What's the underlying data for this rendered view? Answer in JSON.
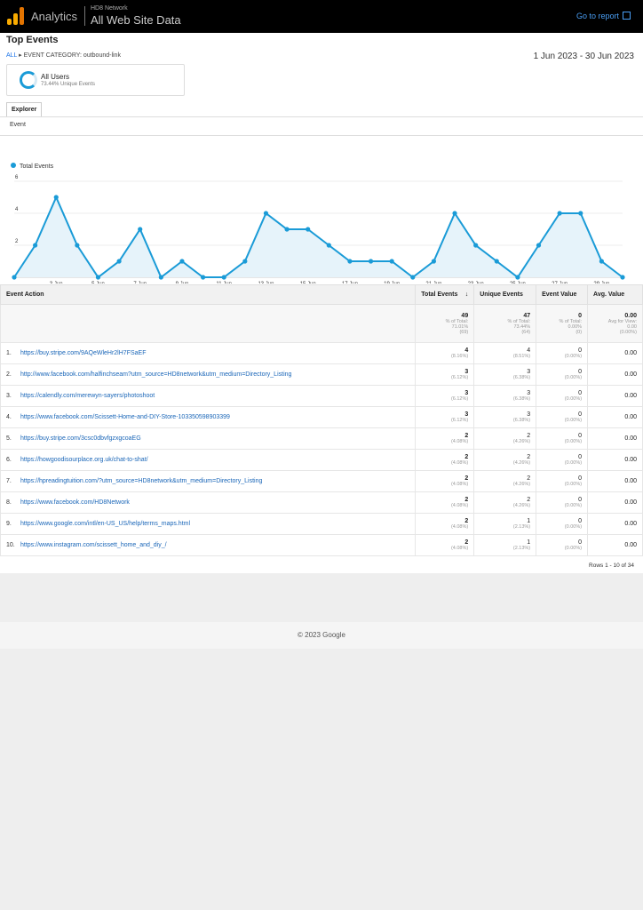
{
  "header": {
    "app_name": "Analytics",
    "account": "HD8 Network",
    "property": "All Web Site Data",
    "go_to_report": "Go to report"
  },
  "report": {
    "title": "Top Events",
    "breadcrumb_all": "ALL",
    "breadcrumb_rest": "EVENT CATEGORY: outbound-link",
    "date_range": "1 Jun 2023 - 30 Jun 2023"
  },
  "segment": {
    "name": "All Users",
    "subtitle": "73.44% Unique Events"
  },
  "tabs": {
    "explorer": "Explorer"
  },
  "primary_dimension": "Event",
  "chart_data": {
    "type": "area",
    "legend": "Total Events",
    "y_ticks": [
      "2",
      "4",
      "6"
    ],
    "ylim": [
      0,
      6
    ],
    "x_tick_labels": [
      "...",
      "3 Jun",
      "5 Jun",
      "7 Jun",
      "9 Jun",
      "11 Jun",
      "13 Jun",
      "15 Jun",
      "17 Jun",
      "19 Jun",
      "21 Jun",
      "23 Jun",
      "25 Jun",
      "27 Jun",
      "29 Jun"
    ],
    "values": [
      0,
      2,
      5,
      2,
      0,
      1,
      3,
      0,
      1,
      0,
      0,
      1,
      4,
      3,
      3,
      2,
      1,
      1,
      1,
      0,
      1,
      4,
      2,
      1,
      0,
      2,
      4,
      4,
      1,
      0
    ],
    "color": "#1a9bd7"
  },
  "table": {
    "headers": {
      "action": "Event Action",
      "total": "Total Events",
      "unique": "Unique Events",
      "value": "Event Value",
      "avg": "Avg. Value"
    },
    "totals": {
      "total": "49",
      "total_pct": "% of Total:",
      "total_pct2": "71.01%",
      "total_of": "(69)",
      "unique": "47",
      "unique_pct": "% of Total:",
      "unique_pct2": "73.44%",
      "unique_of": "(64)",
      "value": "0",
      "value_pct": "% of Total:",
      "value_pct2": "0.00%",
      "value_of": "(0)",
      "avg": "0.00",
      "avg_label": "Avg for View:",
      "avg_view": "0.00",
      "avg_of": "(0.00%)"
    },
    "rows": [
      {
        "idx": "1.",
        "action": "https://buy.stripe.com/9AQeWleHr2lH7FSaEF",
        "total": "4",
        "total_pct": "(8.16%)",
        "unique": "4",
        "unique_pct": "(8.51%)",
        "value": "0",
        "value_pct": "(0.00%)",
        "avg": "0.00"
      },
      {
        "idx": "2.",
        "action": "http://www.facebook.com/halfinchseam?utm_source=HD8network&utm_medium=Directory_Listing",
        "total": "3",
        "total_pct": "(6.12%)",
        "unique": "3",
        "unique_pct": "(6.38%)",
        "value": "0",
        "value_pct": "(0.00%)",
        "avg": "0.00"
      },
      {
        "idx": "3.",
        "action": "https://calendly.com/merewyn-sayers/photoshoot",
        "total": "3",
        "total_pct": "(6.12%)",
        "unique": "3",
        "unique_pct": "(6.38%)",
        "value": "0",
        "value_pct": "(0.00%)",
        "avg": "0.00"
      },
      {
        "idx": "4.",
        "action": "https://www.facebook.com/Scissett-Home-and-DIY-Store-103350598903399",
        "total": "3",
        "total_pct": "(6.12%)",
        "unique": "3",
        "unique_pct": "(6.38%)",
        "value": "0",
        "value_pct": "(0.00%)",
        "avg": "0.00"
      },
      {
        "idx": "5.",
        "action": "https://buy.stripe.com/3csc0dbvfgzxgcoaEG",
        "total": "2",
        "total_pct": "(4.08%)",
        "unique": "2",
        "unique_pct": "(4.26%)",
        "value": "0",
        "value_pct": "(0.00%)",
        "avg": "0.00"
      },
      {
        "idx": "6.",
        "action": "https://howgoodisourplace.org.uk/chat-to-shat/",
        "total": "2",
        "total_pct": "(4.08%)",
        "unique": "2",
        "unique_pct": "(4.26%)",
        "value": "0",
        "value_pct": "(0.00%)",
        "avg": "0.00"
      },
      {
        "idx": "7.",
        "action": "https://hpreadingtuition.com/?utm_source=HD8network&utm_medium=Directory_Listing",
        "total": "2",
        "total_pct": "(4.08%)",
        "unique": "2",
        "unique_pct": "(4.26%)",
        "value": "0",
        "value_pct": "(0.00%)",
        "avg": "0.00"
      },
      {
        "idx": "8.",
        "action": "https://www.facebook.com/HD8Network",
        "total": "2",
        "total_pct": "(4.08%)",
        "unique": "2",
        "unique_pct": "(4.26%)",
        "value": "0",
        "value_pct": "(0.00%)",
        "avg": "0.00"
      },
      {
        "idx": "9.",
        "action": "https://www.google.com/intl/en-US_US/help/terms_maps.html",
        "total": "2",
        "total_pct": "(4.08%)",
        "unique": "1",
        "unique_pct": "(2.13%)",
        "value": "0",
        "value_pct": "(0.00%)",
        "avg": "0.00"
      },
      {
        "idx": "10.",
        "action": "https://www.instagram.com/scissett_home_and_diy_/",
        "total": "2",
        "total_pct": "(4.08%)",
        "unique": "1",
        "unique_pct": "(2.13%)",
        "value": "0",
        "value_pct": "(0.00%)",
        "avg": "0.00"
      }
    ],
    "rows_info": "Rows 1 - 10 of 34"
  },
  "footer": {
    "copyright": "© 2023 Google"
  }
}
